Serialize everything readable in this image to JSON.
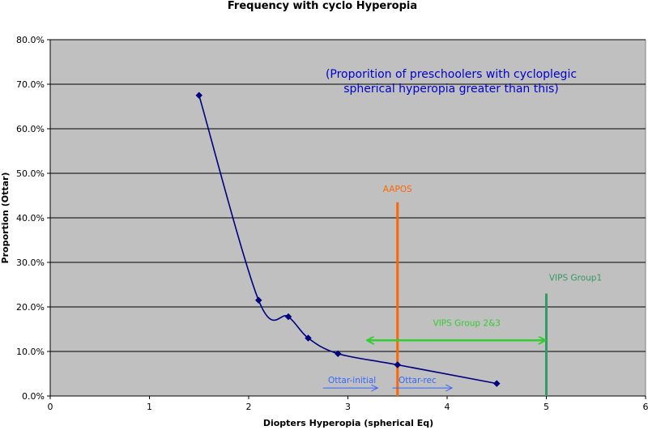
{
  "chart_data": {
    "type": "line",
    "title": "Frequency with cyclo Hyperopia",
    "xlabel": "Diopters Hyperopia (spherical Eq)",
    "ylabel": "Proportion (Ottar)",
    "xlim": [
      0,
      6
    ],
    "ylim": [
      0,
      0.8
    ],
    "x_ticks": [
      "0",
      "1",
      "2",
      "3",
      "4",
      "5",
      "6"
    ],
    "y_ticks": [
      "0.0%",
      "10.0%",
      "20.0%",
      "30.0%",
      "40.0%",
      "50.0%",
      "60.0%",
      "70.0%",
      "80.0%"
    ],
    "grid": "horizontal",
    "plot_background": "#c0c0c0",
    "series": [
      {
        "color": "#000080",
        "x": [
          1.5,
          2.1,
          2.4,
          2.6,
          2.9,
          3.5,
          4.5
        ],
        "y": [
          0.675,
          0.215,
          0.178,
          0.13,
          0.095,
          0.07,
          0.028
        ]
      }
    ],
    "annotations": {
      "note_line1": "(Proporition of preschoolers with cycloplegic",
      "note_line2": "spherical hyperopia greater than this)",
      "note_color": "#0000cc",
      "aapos_label": "AAPOS",
      "aapos_x": 3.5,
      "aapos_top": 0.435,
      "aapos_color": "#ff6600",
      "vips1_label": "VIPS Group1",
      "vips1_x": 5,
      "vips1_top": 0.23,
      "vips1_color": "#339966",
      "vips23_label": "VIPS Group 2&3",
      "vips23_from": 3.2,
      "vips23_to": 5,
      "vips23_y": 0.125,
      "vips23_color": "#33cc33",
      "ottar_initial_label": "Ottar-initial",
      "ottar_initial_from": 2.75,
      "ottar_initial_to": 3.3,
      "ottar_initial_y": 0.018,
      "ottar_rec_label": "Ottar-rec",
      "ottar_rec_from": 3.45,
      "ottar_rec_to": 4.05,
      "ottar_rec_y": 0.018,
      "ottar_color": "#3366ff"
    }
  }
}
